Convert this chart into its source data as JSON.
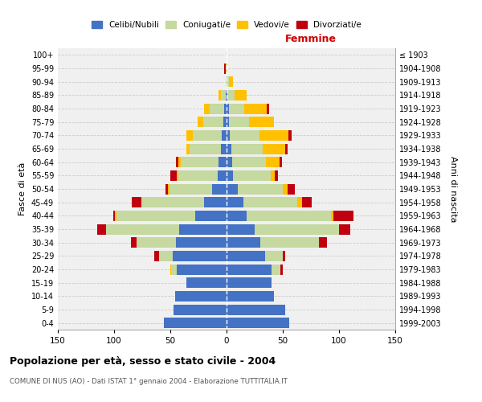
{
  "age_groups": [
    "0-4",
    "5-9",
    "10-14",
    "15-19",
    "20-24",
    "25-29",
    "30-34",
    "35-39",
    "40-44",
    "45-49",
    "50-54",
    "55-59",
    "60-64",
    "65-69",
    "70-74",
    "75-79",
    "80-84",
    "85-89",
    "90-94",
    "95-99",
    "100+"
  ],
  "birth_years": [
    "1999-2003",
    "1994-1998",
    "1989-1993",
    "1984-1988",
    "1979-1983",
    "1974-1978",
    "1969-1973",
    "1964-1968",
    "1959-1963",
    "1954-1958",
    "1949-1953",
    "1944-1948",
    "1939-1943",
    "1934-1938",
    "1929-1933",
    "1924-1928",
    "1919-1923",
    "1914-1918",
    "1909-1913",
    "1904-1908",
    "≤ 1903"
  ],
  "male": {
    "celibi": [
      56,
      47,
      46,
      36,
      44,
      48,
      45,
      42,
      28,
      20,
      13,
      8,
      7,
      5,
      4,
      3,
      2,
      1,
      0,
      0,
      0
    ],
    "coniugati": [
      0,
      0,
      0,
      0,
      5,
      12,
      35,
      65,
      70,
      56,
      38,
      35,
      34,
      28,
      26,
      18,
      13,
      4,
      1,
      1,
      0
    ],
    "vedovi": [
      0,
      0,
      0,
      0,
      1,
      0,
      0,
      0,
      1,
      0,
      1,
      1,
      2,
      3,
      6,
      5,
      5,
      2,
      0,
      0,
      0
    ],
    "divorziati": [
      0,
      0,
      0,
      0,
      0,
      4,
      5,
      8,
      2,
      8,
      2,
      6,
      2,
      0,
      0,
      0,
      0,
      0,
      0,
      1,
      0
    ]
  },
  "female": {
    "nubili": [
      56,
      52,
      42,
      40,
      40,
      34,
      30,
      25,
      18,
      15,
      10,
      6,
      5,
      4,
      3,
      2,
      2,
      1,
      0,
      0,
      0
    ],
    "coniugate": [
      0,
      0,
      0,
      0,
      8,
      16,
      52,
      75,
      75,
      48,
      40,
      33,
      30,
      28,
      26,
      18,
      14,
      6,
      2,
      0,
      0
    ],
    "vedove": [
      0,
      0,
      0,
      0,
      0,
      0,
      0,
      0,
      2,
      4,
      4,
      4,
      12,
      20,
      26,
      22,
      20,
      11,
      4,
      1,
      0
    ],
    "divorziate": [
      0,
      0,
      0,
      0,
      2,
      2,
      7,
      10,
      18,
      9,
      7,
      3,
      2,
      2,
      3,
      0,
      2,
      0,
      0,
      0,
      0
    ]
  },
  "colors": {
    "celibi": "#4472C4",
    "coniugati": "#c5d9a0",
    "vedovi": "#ffc000",
    "divorziati": "#c0000f"
  },
  "title": "Popolazione per età, sesso e stato civile - 2004",
  "subtitle": "COMUNE DI NUS (AO) - Dati ISTAT 1° gennaio 2004 - Elaborazione TUTTITALIA.IT",
  "xlabel_right": "Femmine",
  "ylabel_left": "Fasce di età",
  "ylabel_right": "Anni di nascita",
  "xlim": 150,
  "legend_labels": [
    "Celibi/Nubili",
    "Coniugati/e",
    "Vedovi/e",
    "Divorziati/e"
  ],
  "background_color": "#ffffff",
  "plot_bg_color": "#f0f0f0",
  "grid_color": "#cccccc"
}
